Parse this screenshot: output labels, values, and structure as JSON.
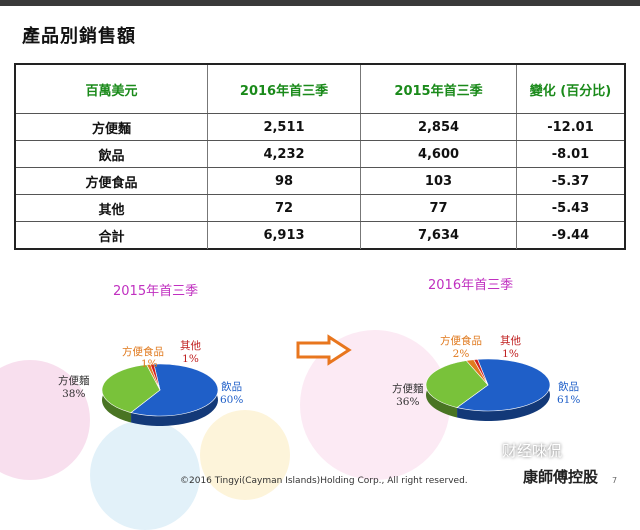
{
  "title": "產品別銷售額",
  "table": {
    "headers": [
      "百萬美元",
      "2016年首三季",
      "2015年首三季",
      "變化 (百分比)"
    ],
    "rows": [
      [
        "方便麵",
        "2,511",
        "2,854",
        "-12.01"
      ],
      [
        "飲品",
        "4,232",
        "4,600",
        "-8.01"
      ],
      [
        "方便食品",
        "98",
        "103",
        "-5.37"
      ],
      [
        "其他",
        "72",
        "77",
        "-5.43"
      ],
      [
        "合計",
        "6,913",
        "7,634",
        "-9.44"
      ]
    ]
  },
  "pies": {
    "left": {
      "title": "2015年首三季",
      "slices": [
        {
          "name": "飲品",
          "pct": "60%",
          "value": 60,
          "color": "#1f5fc8"
        },
        {
          "name": "方便麵",
          "pct": "38%",
          "value": 38,
          "color": "#79c23a"
        },
        {
          "name": "方便食品",
          "pct": "1%",
          "value": 1,
          "color": "#e07a1f"
        },
        {
          "name": "其他",
          "pct": "1%",
          "value": 1,
          "color": "#d02020"
        }
      ]
    },
    "right": {
      "title": "2016年首三季",
      "slices": [
        {
          "name": "飲品",
          "pct": "61%",
          "value": 61,
          "color": "#1f5fc8"
        },
        {
          "name": "方便麵",
          "pct": "36%",
          "value": 36,
          "color": "#79c23a"
        },
        {
          "name": "方便食品",
          "pct": "2%",
          "value": 2,
          "color": "#e07a1f"
        },
        {
          "name": "其他",
          "pct": "1%",
          "value": 1,
          "color": "#d02020"
        }
      ]
    }
  },
  "label_colors": {
    "beverage": "#1f5fc8",
    "noodle": "#333333",
    "instant_food": "#e07a1f",
    "other": "#c02020"
  },
  "arrow_color": "#e8761e",
  "footer": "©2016 Tingyi(Cayman Islands)Holding Corp., All right reserved.",
  "page_number": "7",
  "brand": "康師傅控股",
  "watermark": "财经唻侃"
}
